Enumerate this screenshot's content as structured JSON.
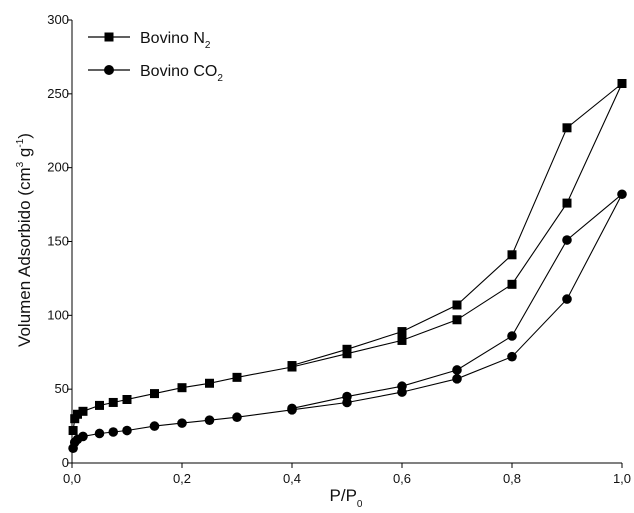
{
  "chart_data": {
    "type": "line",
    "xlabel": {
      "main": "P/P",
      "sub": "0"
    },
    "ylabel": {
      "p1": "Volumen Adsorbido (cm",
      "sup1": "3",
      "p2": " g",
      "sup2": "-1",
      "p3": ")"
    },
    "xlim": [
      0,
      1.0
    ],
    "ylim": [
      0,
      300
    ],
    "xticks": [
      0,
      0.2,
      0.4,
      0.6,
      0.8,
      1.0
    ],
    "xtick_labels": [
      "0,0",
      "0,2",
      "0,4",
      "0,6",
      "0,8",
      "1,0"
    ],
    "yticks": [
      0,
      50,
      100,
      150,
      200,
      250,
      300
    ],
    "ytick_labels": [
      "0",
      "50",
      "100",
      "150",
      "200",
      "250",
      "300"
    ],
    "grid": false,
    "legend_position": "top-left",
    "series": [
      {
        "name": "Bovino N",
        "name_sub": "2",
        "marker": "square",
        "color": "#000000",
        "x": [
          0.002,
          0.005,
          0.01,
          0.02,
          0.05,
          0.075,
          0.1,
          0.15,
          0.2,
          0.25,
          0.3,
          0.4,
          0.5,
          0.6,
          0.7,
          0.8,
          0.9,
          1.0,
          0.9,
          0.8,
          0.7,
          0.6,
          0.5,
          0.4
        ],
        "y": [
          22,
          30,
          33,
          35,
          39,
          41,
          43,
          47,
          51,
          54,
          58,
          65,
          74,
          83,
          97,
          121,
          176,
          257,
          227,
          141,
          107,
          89,
          77,
          66
        ]
      },
      {
        "name": "Bovino CO",
        "name_sub": "2",
        "marker": "circle",
        "color": "#000000",
        "x": [
          0.002,
          0.005,
          0.01,
          0.02,
          0.05,
          0.075,
          0.1,
          0.15,
          0.2,
          0.25,
          0.3,
          0.4,
          0.5,
          0.6,
          0.7,
          0.8,
          0.9,
          1.0,
          0.9,
          0.8,
          0.7,
          0.6,
          0.5,
          0.4
        ],
        "y": [
          10,
          14,
          16,
          18,
          20,
          21,
          22,
          25,
          27,
          29,
          31,
          36,
          41,
          48,
          57,
          72,
          111,
          182,
          151,
          86,
          63,
          52,
          45,
          37
        ]
      }
    ]
  }
}
